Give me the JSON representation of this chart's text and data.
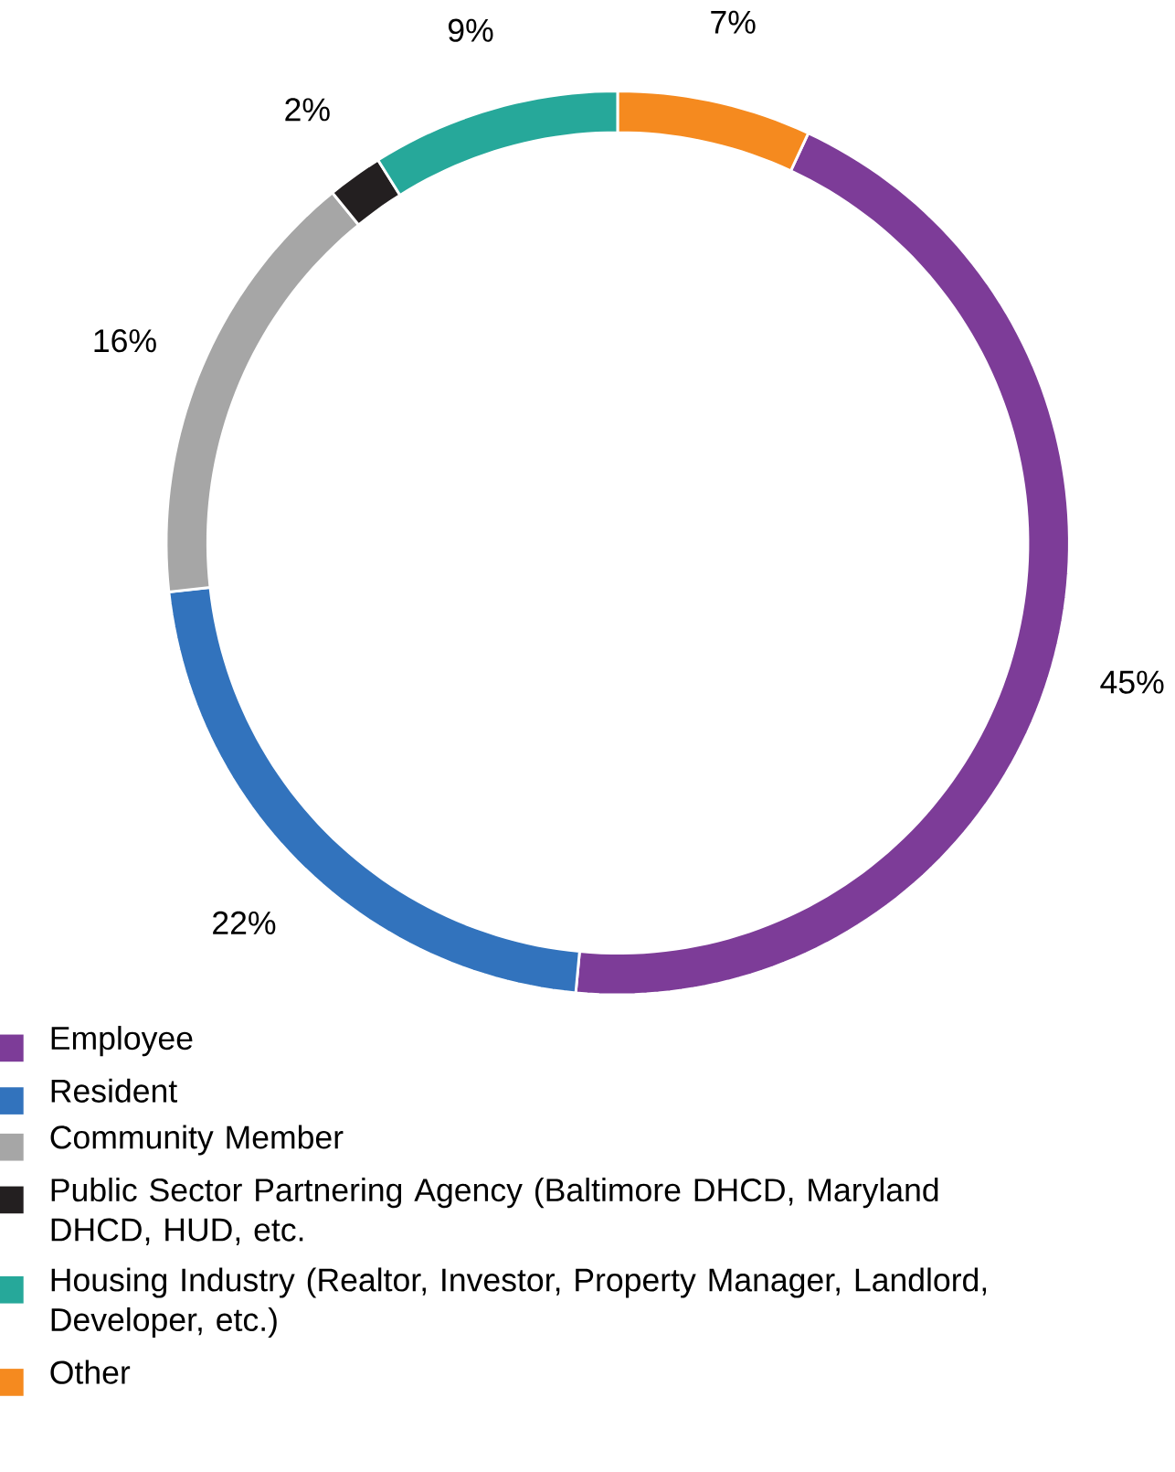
{
  "chart_data": {
    "type": "donut",
    "categories": [
      "Employee",
      "Resident",
      "Community Member",
      "Public Sector Partnering Agency (Baltimore DHCD, Maryland DHCD, HUD, etc.",
      "Housing Industry (Realtor, Investor, Property Manager, Landlord, Developer, etc.)",
      "Other"
    ],
    "values": [
      45,
      22,
      16,
      2,
      9,
      7
    ],
    "colors": [
      "#7d3c98",
      "#3273bd",
      "#a6a6a6",
      "#231f20",
      "#26a89a",
      "#f58a1f"
    ],
    "value_labels": [
      "45%",
      "22%",
      "16%",
      "2%",
      "9%",
      "7%"
    ],
    "legend": "bottom"
  }
}
